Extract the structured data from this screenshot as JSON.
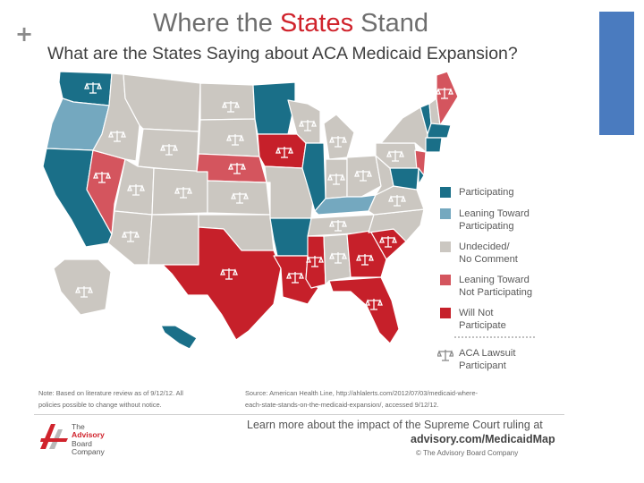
{
  "slide": {
    "plus_glyph": "+"
  },
  "header": {
    "title_pre": "Where the ",
    "title_highlight": "States",
    "title_post": " Stand",
    "subtitle": "What are the States Saying about ACA Medicaid Expansion?"
  },
  "colors": {
    "participating": "#1a6f88",
    "leaning_toward_participating": "#74a8bf",
    "undecided": "#cbc7c1",
    "leaning_toward_not": "#d4555e",
    "will_not_participate": "#c6202a",
    "accent_bar": "#4a7bbf",
    "border": "#ffffff"
  },
  "legend": {
    "items": [
      {
        "label": "Participating",
        "key": "participating"
      },
      {
        "label": "Leaning Toward\nParticipating",
        "key": "leaning_toward_participating"
      },
      {
        "label": "Undecided/\nNo Comment",
        "key": "undecided"
      },
      {
        "label": "Leaning Toward\nNot Participating",
        "key": "leaning_toward_not"
      },
      {
        "label": "Will Not\nParticipate",
        "key": "will_not_participate"
      }
    ],
    "lawsuit_label": "ACA Lawsuit\nParticipant",
    "lawsuit_icon": "scales-icon"
  },
  "map": {
    "states": [
      {
        "name": "Washington",
        "status": "participating",
        "lawsuit": true
      },
      {
        "name": "Oregon",
        "status": "leaning_toward_participating",
        "lawsuit": false
      },
      {
        "name": "California",
        "status": "participating",
        "lawsuit": false
      },
      {
        "name": "Nevada",
        "status": "leaning_toward_not",
        "lawsuit": true
      },
      {
        "name": "Idaho",
        "status": "undecided",
        "lawsuit": true
      },
      {
        "name": "Montana",
        "status": "undecided",
        "lawsuit": false
      },
      {
        "name": "Wyoming",
        "status": "undecided",
        "lawsuit": true
      },
      {
        "name": "Utah",
        "status": "undecided",
        "lawsuit": true
      },
      {
        "name": "Arizona",
        "status": "undecided",
        "lawsuit": true
      },
      {
        "name": "Colorado",
        "status": "undecided",
        "lawsuit": true
      },
      {
        "name": "New Mexico",
        "status": "undecided",
        "lawsuit": false
      },
      {
        "name": "North Dakota",
        "status": "undecided",
        "lawsuit": true
      },
      {
        "name": "South Dakota",
        "status": "undecided",
        "lawsuit": true
      },
      {
        "name": "Nebraska",
        "status": "leaning_toward_not",
        "lawsuit": true
      },
      {
        "name": "Kansas",
        "status": "undecided",
        "lawsuit": true
      },
      {
        "name": "Oklahoma",
        "status": "undecided",
        "lawsuit": false
      },
      {
        "name": "Texas",
        "status": "will_not_participate",
        "lawsuit": true
      },
      {
        "name": "Minnesota",
        "status": "participating",
        "lawsuit": false
      },
      {
        "name": "Iowa",
        "status": "will_not_participate",
        "lawsuit": true
      },
      {
        "name": "Missouri",
        "status": "undecided",
        "lawsuit": false
      },
      {
        "name": "Arkansas",
        "status": "participating",
        "lawsuit": false
      },
      {
        "name": "Louisiana",
        "status": "will_not_participate",
        "lawsuit": true
      },
      {
        "name": "Wisconsin",
        "status": "undecided",
        "lawsuit": true
      },
      {
        "name": "Illinois",
        "status": "participating",
        "lawsuit": false
      },
      {
        "name": "Michigan",
        "status": "undecided",
        "lawsuit": true
      },
      {
        "name": "Indiana",
        "status": "undecided",
        "lawsuit": true
      },
      {
        "name": "Ohio",
        "status": "undecided",
        "lawsuit": true
      },
      {
        "name": "Kentucky",
        "status": "leaning_toward_participating",
        "lawsuit": false
      },
      {
        "name": "Tennessee",
        "status": "undecided",
        "lawsuit": true
      },
      {
        "name": "Mississippi",
        "status": "will_not_participate",
        "lawsuit": true
      },
      {
        "name": "Alabama",
        "status": "undecided",
        "lawsuit": true
      },
      {
        "name": "Georgia",
        "status": "will_not_participate",
        "lawsuit": true
      },
      {
        "name": "Florida",
        "status": "will_not_participate",
        "lawsuit": true
      },
      {
        "name": "South Carolina",
        "status": "will_not_participate",
        "lawsuit": true
      },
      {
        "name": "North Carolina",
        "status": "undecided",
        "lawsuit": false
      },
      {
        "name": "Virginia",
        "status": "undecided",
        "lawsuit": true
      },
      {
        "name": "West Virginia",
        "status": "undecided",
        "lawsuit": false
      },
      {
        "name": "Pennsylvania",
        "status": "undecided",
        "lawsuit": true
      },
      {
        "name": "New York",
        "status": "undecided",
        "lawsuit": false
      },
      {
        "name": "New Jersey",
        "status": "leaning_toward_not",
        "lawsuit": false
      },
      {
        "name": "Maryland",
        "status": "participating",
        "lawsuit": false
      },
      {
        "name": "Delaware",
        "status": "participating",
        "lawsuit": false
      },
      {
        "name": "Vermont",
        "status": "participating",
        "lawsuit": false
      },
      {
        "name": "New Hampshire",
        "status": "undecided",
        "lawsuit": false
      },
      {
        "name": "Maine",
        "status": "leaning_toward_not",
        "lawsuit": true
      },
      {
        "name": "Massachusetts",
        "status": "participating",
        "lawsuit": false
      },
      {
        "name": "Connecticut",
        "status": "participating",
        "lawsuit": false
      },
      {
        "name": "Alaska",
        "status": "undecided",
        "lawsuit": true
      },
      {
        "name": "Hawaii",
        "status": "participating",
        "lawsuit": false
      }
    ]
  },
  "footer": {
    "note": "Note: Based on literature review as of 9/12/12. All\npolicies possible to change without notice.",
    "source": "Source: American Health Line, http://ahlalerts.com/2012/07/03/medicaid-where-\neach-state-stands-on-the-medicaid-expansion/, accessed 9/12/12.",
    "cta_line1": "Learn more about the impact of the Supreme Court ruling at",
    "cta_line2": "advisory.com/MedicaidMap",
    "copyright": "© The Advisory Board Company",
    "logo_lines": [
      "The",
      "Advisory",
      "Board",
      "Company"
    ]
  }
}
